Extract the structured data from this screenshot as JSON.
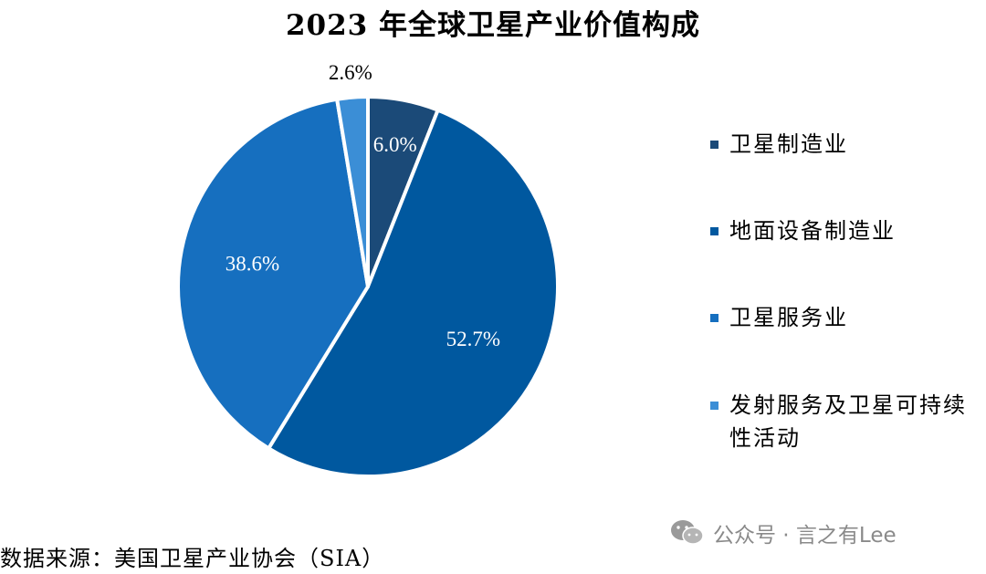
{
  "chart_data": {
    "type": "pie",
    "title": "2023 年全球卫星产业价值构成",
    "categories": [
      "卫星制造业",
      "地面设备制造业",
      "卫星服务业",
      "发射服务及卫星可持续性活动"
    ],
    "values": [
      6.0,
      52.7,
      38.6,
      2.6
    ],
    "value_labels": [
      "6.0%",
      "52.7%",
      "38.6%",
      "2.6%"
    ],
    "colors": [
      "#1b4a78",
      "#00589f",
      "#166fbf",
      "#3b8ed6"
    ],
    "label_colors": [
      "#ffffff",
      "#ffffff",
      "#ffffff",
      "#000000"
    ],
    "legend_position": "right",
    "start_angle": "12 o'clock, clockwise"
  },
  "legend": {
    "items": [
      {
        "label": "卫星制造业"
      },
      {
        "label": "地面设备制造业"
      },
      {
        "label": "卫星服务业"
      },
      {
        "label": "发射服务及卫星可持续性活动"
      }
    ]
  },
  "footer": {
    "source": "数据来源：美国卫星产业协会（SIA）",
    "watermark": "公众号 · 言之有Lee"
  }
}
